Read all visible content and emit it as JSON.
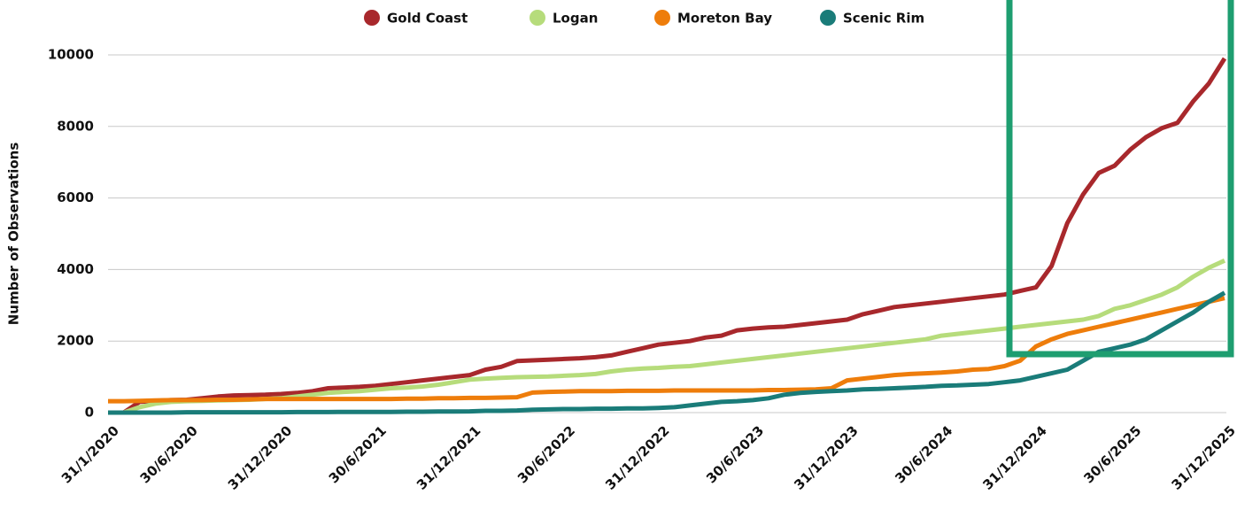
{
  "chart_data": {
    "type": "line",
    "y_label": "Number of Observations",
    "x": [
      "31/1/2020",
      "29/2/2020",
      "31/3/2020",
      "30/4/2020",
      "31/5/2020",
      "30/6/2020",
      "31/7/2020",
      "31/8/2020",
      "30/9/2020",
      "31/10/2020",
      "30/11/2020",
      "31/12/2020",
      "31/1/2021",
      "28/2/2021",
      "31/3/2021",
      "30/4/2021",
      "31/5/2021",
      "30/6/2021",
      "31/7/2021",
      "31/8/2021",
      "30/9/2021",
      "31/10/2021",
      "30/11/2021",
      "31/12/2021",
      "31/1/2022",
      "28/2/2022",
      "31/3/2022",
      "30/4/2022",
      "31/5/2022",
      "30/6/2022",
      "31/7/2022",
      "31/8/2022",
      "30/9/2022",
      "31/10/2022",
      "30/11/2022",
      "31/12/2022",
      "31/1/2023",
      "28/2/2023",
      "31/3/2023",
      "30/4/2023",
      "31/5/2023",
      "30/6/2023",
      "31/7/2023",
      "31/8/2023",
      "30/9/2023",
      "31/10/2023",
      "30/11/2023",
      "31/12/2023",
      "31/1/2024",
      "29/2/2024",
      "31/3/2024",
      "30/4/2024",
      "31/5/2024",
      "30/6/2024",
      "31/7/2024",
      "31/8/2024",
      "30/9/2024",
      "31/10/2024",
      "30/11/2024",
      "31/12/2024",
      "31/1/2025",
      "28/2/2025",
      "31/3/2025",
      "30/4/2025",
      "31/5/2025",
      "30/6/2025",
      "31/7/2025",
      "31/8/2025",
      "30/9/2025",
      "31/10/2025",
      "30/11/2025",
      "31/12/2025"
    ],
    "xticks": [
      "31/1/2020",
      "30/6/2020",
      "31/12/2020",
      "30/6/2021",
      "31/12/2021",
      "30/6/2022",
      "31/12/2022",
      "30/6/2023",
      "31/12/2023",
      "30/6/2024",
      "31/12/2024",
      "30/6/2025",
      "31/12/2025"
    ],
    "ylim": [
      0,
      10000
    ],
    "yticks": [
      0,
      2000,
      4000,
      6000,
      8000,
      10000
    ],
    "grid": true,
    "legend": "top",
    "series": [
      {
        "name": "Gold Coast",
        "color": "#a8282c",
        "values": [
          0,
          0,
          300,
          330,
          350,
          360,
          400,
          450,
          480,
          490,
          500,
          520,
          550,
          600,
          680,
          700,
          720,
          750,
          800,
          850,
          900,
          950,
          1000,
          1050,
          1200,
          1280,
          1440,
          1460,
          1480,
          1500,
          1520,
          1550,
          1600,
          1700,
          1800,
          1900,
          1950,
          2000,
          2100,
          2150,
          2300,
          2350,
          2380,
          2400,
          2450,
          2500,
          2550,
          2600,
          2750,
          2850,
          2950,
          3000,
          3050,
          3100,
          3150,
          3200,
          3250,
          3300,
          3400,
          3500,
          4100,
          5300,
          6100,
          6700,
          6900,
          7350,
          7700,
          7950,
          8100,
          8700,
          9200,
          9900
        ]
      },
      {
        "name": "Logan",
        "color": "#b6dc7b",
        "values": [
          0,
          0,
          150,
          250,
          300,
          320,
          330,
          340,
          350,
          360,
          380,
          400,
          450,
          500,
          550,
          580,
          600,
          640,
          680,
          700,
          730,
          780,
          850,
          920,
          950,
          970,
          990,
          1000,
          1010,
          1030,
          1050,
          1080,
          1150,
          1200,
          1230,
          1250,
          1280,
          1300,
          1350,
          1400,
          1450,
          1500,
          1550,
          1600,
          1650,
          1700,
          1750,
          1800,
          1850,
          1900,
          1950,
          2000,
          2050,
          2150,
          2200,
          2250,
          2300,
          2350,
          2400,
          2450,
          2500,
          2550,
          2600,
          2700,
          2900,
          3000,
          3150,
          3300,
          3500,
          3800,
          4050,
          4250
        ]
      },
      {
        "name": "Moreton Bay",
        "color": "#ee7d0b",
        "values": [
          320,
          320,
          330,
          340,
          350,
          350,
          350,
          360,
          360,
          370,
          380,
          380,
          380,
          380,
          380,
          380,
          380,
          380,
          380,
          390,
          390,
          400,
          400,
          410,
          410,
          420,
          430,
          560,
          580,
          590,
          600,
          600,
          600,
          610,
          610,
          610,
          620,
          620,
          620,
          620,
          620,
          620,
          630,
          630,
          640,
          650,
          680,
          900,
          950,
          1000,
          1050,
          1080,
          1100,
          1120,
          1150,
          1200,
          1220,
          1300,
          1450,
          1850,
          2050,
          2200,
          2300,
          2400,
          2500,
          2600,
          2700,
          2800,
          2900,
          3000,
          3100,
          3200
        ]
      },
      {
        "name": "Scenic Rim",
        "color": "#1a7c79",
        "values": [
          0,
          0,
          0,
          0,
          0,
          10,
          10,
          10,
          10,
          10,
          10,
          10,
          15,
          15,
          15,
          20,
          20,
          20,
          20,
          25,
          25,
          30,
          30,
          35,
          50,
          50,
          60,
          80,
          90,
          100,
          100,
          110,
          110,
          120,
          120,
          130,
          150,
          200,
          250,
          300,
          320,
          350,
          400,
          500,
          550,
          580,
          600,
          620,
          650,
          660,
          680,
          700,
          720,
          750,
          760,
          780,
          800,
          850,
          900,
          1000,
          1100,
          1200,
          1450,
          1700,
          1800,
          1900,
          2050,
          2300,
          2550,
          2800,
          3100,
          3350
        ]
      }
    ]
  }
}
